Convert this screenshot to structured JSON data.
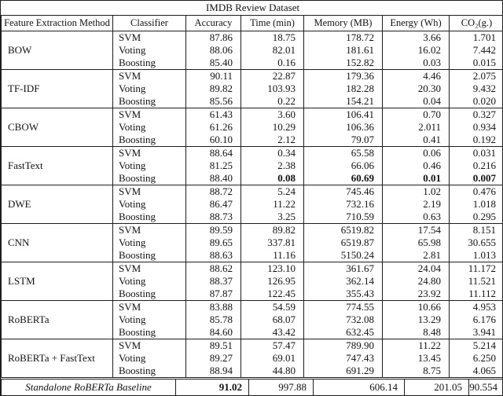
{
  "table": {
    "title": "IMDB Review Dataset",
    "columns": [
      "Feature Extraction Method",
      "Classifier",
      "Accuracy",
      "Time (min)",
      "Memory (MB)",
      "Energy (Wh)",
      "CO₂(g.)"
    ],
    "groups": [
      {
        "method": "BOW",
        "rows": [
          {
            "classifier": "SVM",
            "accuracy": "87.86",
            "time": "18.75",
            "memory": "178.72",
            "energy": "3.66",
            "co2": "1.701"
          },
          {
            "classifier": "Voting",
            "accuracy": "88.06",
            "time": "82.01",
            "memory": "181.61",
            "energy": "16.02",
            "co2": "7.442"
          },
          {
            "classifier": "Boosting",
            "accuracy": "85.40",
            "time": "0.16",
            "memory": "152.82",
            "energy": "0.03",
            "co2": "0.015"
          }
        ]
      },
      {
        "method": "TF-IDF",
        "rows": [
          {
            "classifier": "SVM",
            "accuracy": "90.11",
            "time": "22.87",
            "memory": "179.36",
            "energy": "4.46",
            "co2": "2.075"
          },
          {
            "classifier": "Voting",
            "accuracy": "89.82",
            "time": "103.93",
            "memory": "182.28",
            "energy": "20.30",
            "co2": "9.432"
          },
          {
            "classifier": "Boosting",
            "accuracy": "85.56",
            "time": "0.22",
            "memory": "154.21",
            "energy": "0.04",
            "co2": "0.020"
          }
        ]
      },
      {
        "method": "CBOW",
        "rows": [
          {
            "classifier": "SVM",
            "accuracy": "61.43",
            "time": "3.60",
            "memory": "106.41",
            "energy": "0.70",
            "co2": "0.327"
          },
          {
            "classifier": "Voting",
            "accuracy": "61.26",
            "time": "10.29",
            "memory": "106.36",
            "energy": "2.011",
            "co2": "0.934"
          },
          {
            "classifier": "Boosting",
            "accuracy": "60.10",
            "time": "2.12",
            "memory": "79.07",
            "energy": "0.41",
            "co2": "0.192"
          }
        ]
      },
      {
        "method": "FastText",
        "rows": [
          {
            "classifier": "SVM",
            "accuracy": "88.64",
            "time": "0.34",
            "memory": "65.58",
            "energy": "0.06",
            "co2": "0.031"
          },
          {
            "classifier": "Voting",
            "accuracy": "81.25",
            "time": "2.38",
            "memory": "66.06",
            "energy": "0.46",
            "co2": "0.216"
          },
          {
            "classifier": "Boosting",
            "accuracy": "88.40",
            "time": "0.08",
            "memory": "60.69",
            "energy": "0.01",
            "co2": "0.007",
            "bold": [
              "time",
              "memory",
              "energy",
              "co2"
            ]
          }
        ]
      },
      {
        "method": "DWE",
        "rows": [
          {
            "classifier": "SVM",
            "accuracy": "88.72",
            "time": "5.24",
            "memory": "745.46",
            "energy": "1.02",
            "co2": "0.476"
          },
          {
            "classifier": "Voting",
            "accuracy": "86.47",
            "time": "11.22",
            "memory": "732.16",
            "energy": "2.19",
            "co2": "1.018"
          },
          {
            "classifier": "Boosting",
            "accuracy": "88.73",
            "time": "3.25",
            "memory": "710.59",
            "energy": "0.63",
            "co2": "0.295"
          }
        ]
      },
      {
        "method": "CNN",
        "rows": [
          {
            "classifier": "SVM",
            "accuracy": "89.59",
            "time": "89.82",
            "memory": "6519.82",
            "energy": "17.54",
            "co2": "8.151"
          },
          {
            "classifier": "Voting",
            "accuracy": "89.65",
            "time": "337.81",
            "memory": "6519.87",
            "energy": "65.98",
            "co2": "30.655"
          },
          {
            "classifier": "Boosting",
            "accuracy": "88.63",
            "time": "11.16",
            "memory": "5150.24",
            "energy": "2.81",
            "co2": "1.013"
          }
        ]
      },
      {
        "method": "LSTM",
        "rows": [
          {
            "classifier": "SVM",
            "accuracy": "88.62",
            "time": "123.10",
            "memory": "361.67",
            "energy": "24.04",
            "co2": "11.172"
          },
          {
            "classifier": "Voting",
            "accuracy": "88.37",
            "time": "126.95",
            "memory": "362.14",
            "energy": "24.80",
            "co2": "11.521"
          },
          {
            "classifier": "Boosting",
            "accuracy": "87.87",
            "time": "122.45",
            "memory": "355.43",
            "energy": "23.92",
            "co2": "11.112"
          }
        ]
      },
      {
        "method": "RoBERTa",
        "rows": [
          {
            "classifier": "SVM",
            "accuracy": "83.88",
            "time": "54.59",
            "memory": "774.55",
            "energy": "10.66",
            "co2": "4.953"
          },
          {
            "classifier": "Voting",
            "accuracy": "85.78",
            "time": "68.07",
            "memory": "732.08",
            "energy": "13.29",
            "co2": "6.176"
          },
          {
            "classifier": "Boosting",
            "accuracy": "84.60",
            "time": "43.42",
            "memory": "632.45",
            "energy": "8.48",
            "co2": "3.941"
          }
        ]
      },
      {
        "method": "RoBERTa + FastText",
        "rows": [
          {
            "classifier": "SVM",
            "accuracy": "89.51",
            "time": "57.47",
            "memory": "789.90",
            "energy": "11.22",
            "co2": "5.214"
          },
          {
            "classifier": "Voting",
            "accuracy": "89.27",
            "time": "69.01",
            "memory": "747.43",
            "energy": "13.45",
            "co2": "6.250"
          },
          {
            "classifier": "Boosting",
            "accuracy": "88.94",
            "time": "44.80",
            "memory": "691.29",
            "energy": "8.75",
            "co2": "4.065"
          }
        ]
      }
    ],
    "baseline": {
      "label": "Standalone RoBERTa Baseline",
      "accuracy": "91.02",
      "time": "997.88",
      "memory": "606.14",
      "energy": "201.05",
      "co2": "90.554"
    }
  }
}
